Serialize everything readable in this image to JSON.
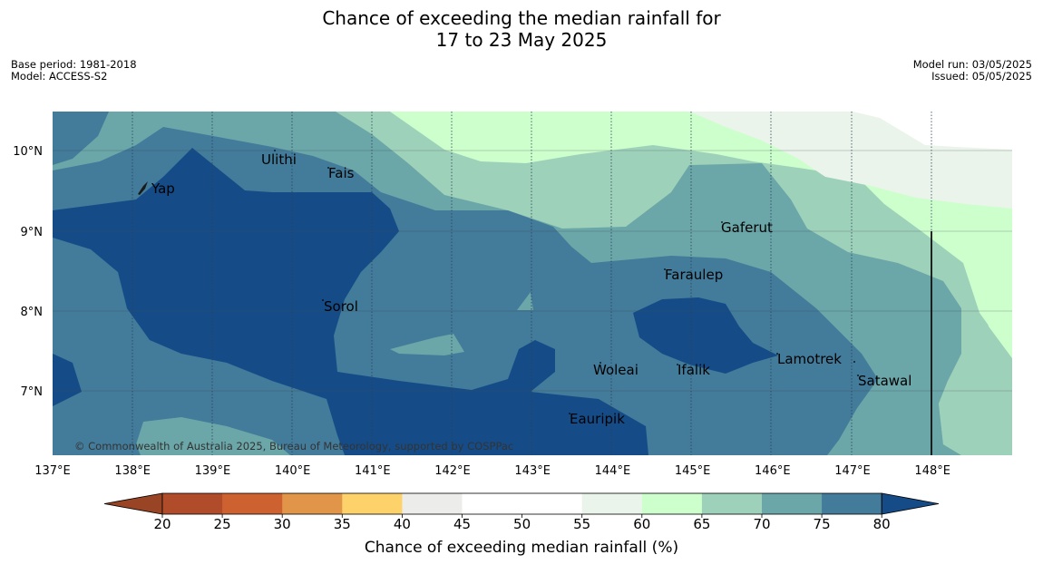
{
  "header": {
    "title_line1": "Chance of exceeding the median rainfall for",
    "title_line2": "17 to 23 May 2025",
    "base_period": "Base period: 1981-2018",
    "model": "Model: ACCESS-S2",
    "model_run": "Model run: 03/05/2025",
    "issued": "Issued: 05/05/2025"
  },
  "map": {
    "lon_ticks": [
      "137°E",
      "138°E",
      "139°E",
      "140°E",
      "141°E",
      "142°E",
      "143°E",
      "144°E",
      "145°E",
      "146°E",
      "147°E",
      "148°E"
    ],
    "lat_ticks": [
      "10°N",
      "9°N",
      "8°N",
      "7°N"
    ],
    "places": [
      "Yap",
      "Ulithi",
      "Fais",
      "Gaferut",
      "Faraulep",
      "Sorol",
      "Woleai",
      "Ifalik",
      "Lamotrek",
      "Satawal",
      "Eauripik"
    ],
    "copyright": "© Commonwealth of Australia 2025, Bureau of Meteorology, supported by COSPPac"
  },
  "colorbar": {
    "ticks": [
      "20",
      "25",
      "30",
      "35",
      "40",
      "45",
      "50",
      "55",
      "60",
      "65",
      "70",
      "75",
      "80"
    ],
    "label": "Chance of exceeding median rainfall (%)",
    "colors": {
      "below20": "#9a4426",
      "c20_25": "#b14c2a",
      "c25_30": "#cd6230",
      "c30_35": "#e19548",
      "c35_40": "#fdd26b",
      "c40_45": "#ececea",
      "c45_50": "#ffffff",
      "c50_55": "#ffffff",
      "c55_60": "#eaf4ea",
      "c60_65": "#ccffcc",
      "c65_70": "#9ed1b9",
      "c70_75": "#6ba6a8",
      "c75_80": "#437b9a",
      "above80": "#154c88"
    }
  }
}
